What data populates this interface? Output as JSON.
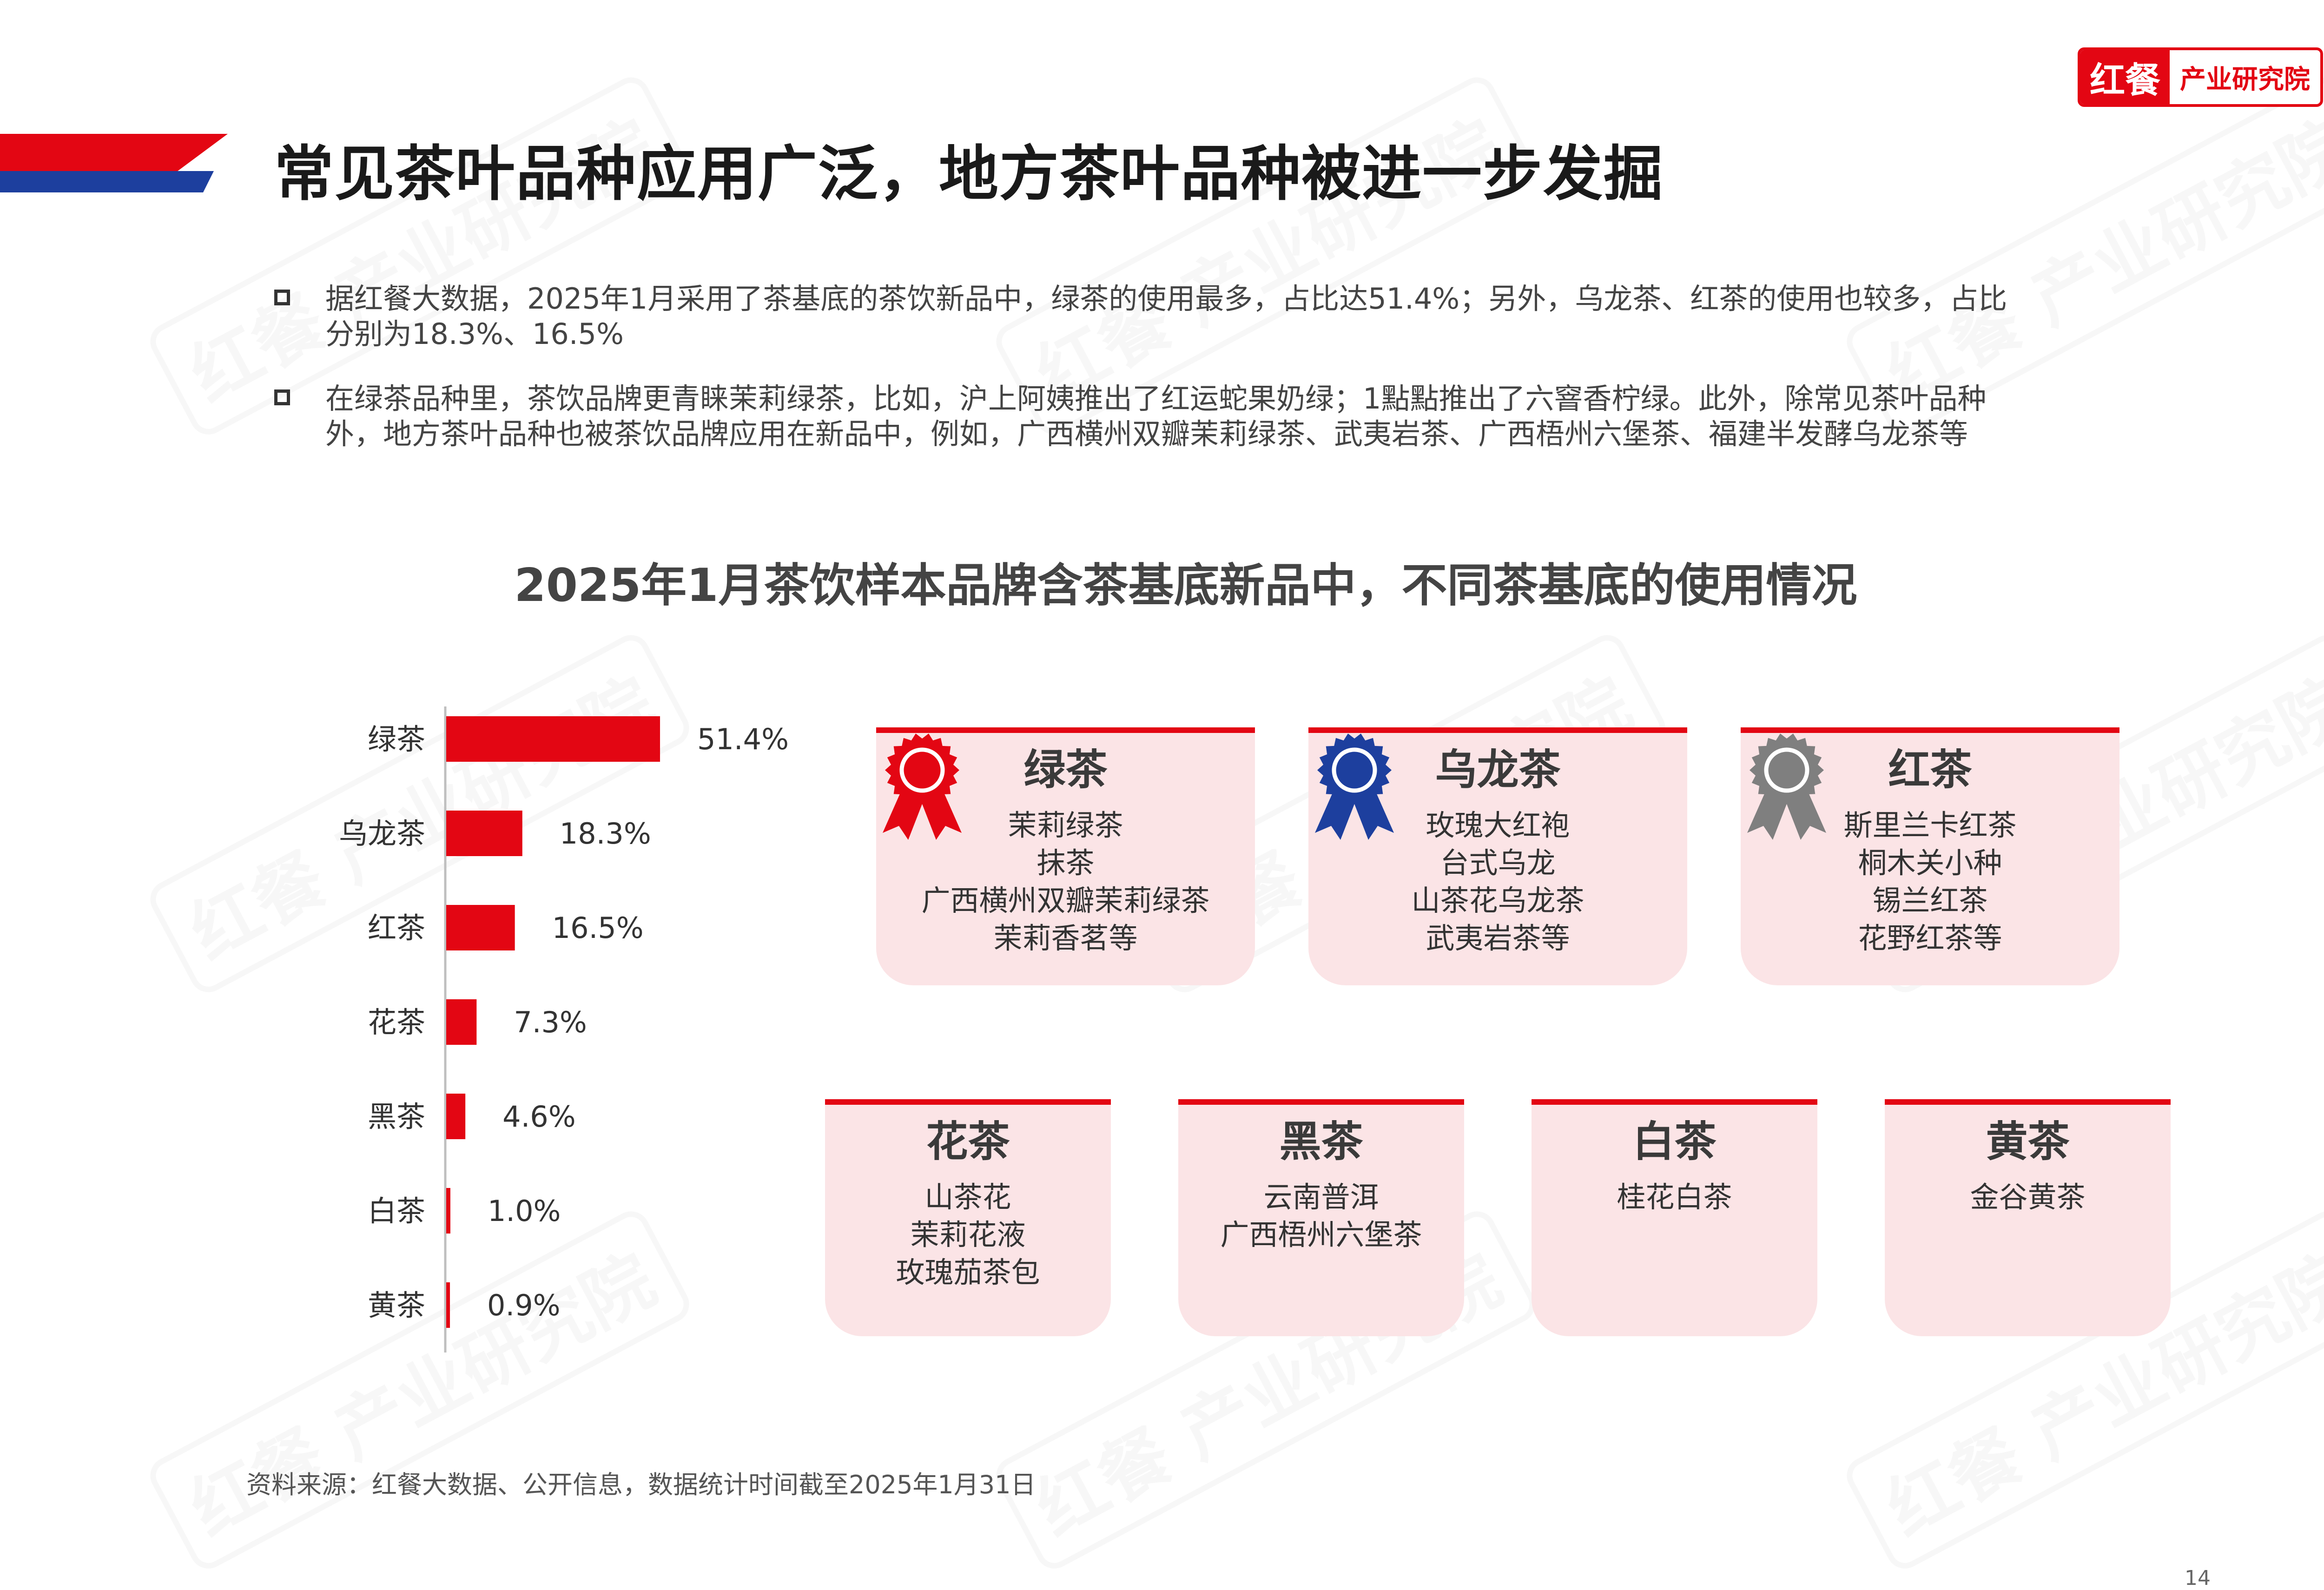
{
  "logo": {
    "mark": "红餐",
    "text": "产业研究院"
  },
  "page_title": "常见茶叶品种应用广泛，地方茶叶品种被进一步发掘",
  "bullets": [
    {
      "line1": "据红餐大数据，2025年1月采用了茶基底的茶饮新品中，绿茶的使用最多，占比达51.4%；另外，乌龙茶、红茶的使用也较多，占比",
      "line2": "分别为18.3%、16.5%"
    },
    {
      "line1": "在绿茶品种里，茶饮品牌更青睐茉莉绿茶，比如，沪上阿姨推出了红运蛇果奶绿；1點點推出了六窨香柠绿。此外，除常见茶叶品种",
      "line2": "外，地方茶叶品种也被茶饮品牌应用在新品中，例如，广西横州双瓣茉莉绿茶、武夷岩茶、广西梧州六堡茶、福建半发酵乌龙茶等"
    }
  ],
  "chart_title": "2025年1月茶饮样本品牌含茶基底新品中，不同茶基底的使用情况",
  "chart_data": {
    "type": "bar",
    "orientation": "horizontal",
    "categories": [
      "绿茶",
      "乌龙茶",
      "红茶",
      "花茶",
      "黑茶",
      "白茶",
      "黄茶"
    ],
    "values": [
      51.4,
      18.3,
      16.5,
      7.3,
      4.6,
      1.0,
      0.9
    ],
    "labels": [
      "51.4%",
      "18.3%",
      "16.5%",
      "7.3%",
      "4.6%",
      "1.0%",
      "0.9%"
    ],
    "unit": "%",
    "color": "#e30613",
    "grid": false,
    "legend": "none",
    "xlim": [
      0,
      100
    ]
  },
  "cards_top": [
    {
      "title": "绿茶",
      "items": [
        "茉莉绿茶",
        "抹茶",
        "广西横州双瓣茉莉绿茶",
        "茉莉香茗等"
      ],
      "badge_color": "#e30613"
    },
    {
      "title": "乌龙茶",
      "items": [
        "玫瑰大红袍",
        "台式乌龙",
        "山茶花乌龙茶",
        "武夷岩茶等"
      ],
      "badge_color": "#1d3f9e"
    },
    {
      "title": "红茶",
      "items": [
        "斯里兰卡红茶",
        "桐木关小种",
        "锡兰红茶",
        "花野红茶等"
      ],
      "badge_color": "#7f7f7f"
    }
  ],
  "cards_bottom": [
    {
      "title": "花茶",
      "items": [
        "山茶花",
        "茉莉花液",
        "玫瑰茄茶包"
      ]
    },
    {
      "title": "黑茶",
      "items": [
        "云南普洱",
        "广西梧州六堡茶"
      ]
    },
    {
      "title": "白茶",
      "items": [
        "桂花白茶"
      ]
    },
    {
      "title": "黄茶",
      "items": [
        "金谷黄茶"
      ]
    }
  ],
  "source": "资料来源：红餐大数据、公开信息，数据统计时间截至2025年1月31日",
  "page_number": "14",
  "watermark": "红餐 产业研究院"
}
